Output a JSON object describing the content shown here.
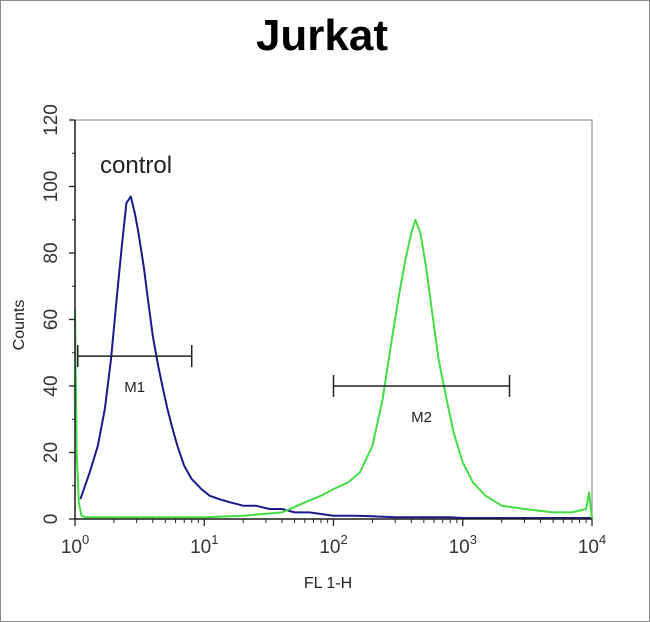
{
  "chart_data": {
    "type": "line",
    "title": "Jurkat",
    "xlabel": "FL 1-H",
    "ylabel": "Counts",
    "xscale": "log",
    "xlim": [
      1,
      10000
    ],
    "ylim": [
      0,
      120
    ],
    "x_ticks": [
      {
        "base": "10",
        "exp": "0",
        "value": 1
      },
      {
        "base": "10",
        "exp": "1",
        "value": 10
      },
      {
        "base": "10",
        "exp": "2",
        "value": 100
      },
      {
        "base": "10",
        "exp": "3",
        "value": 1000
      },
      {
        "base": "10",
        "exp": "4",
        "value": 10000
      }
    ],
    "y_ticks": [
      "0",
      "20",
      "40",
      "60",
      "80",
      "100",
      "120"
    ],
    "annotation": "control",
    "series": [
      {
        "color": "#1a1a8c",
        "x": [
          1.1,
          1.3,
          1.5,
          1.7,
          1.9,
          2.1,
          2.3,
          2.5,
          2.7,
          2.9,
          3.1,
          3.4,
          3.7,
          4.0,
          4.4,
          4.8,
          5.2,
          5.7,
          6.2,
          7.0,
          8.0,
          9.5,
          11,
          13,
          16,
          20,
          25,
          32,
          40,
          50,
          65,
          80,
          100,
          150,
          200,
          300,
          500,
          800,
          1000,
          2000,
          3000,
          5000,
          10000
        ],
        "y": [
          6,
          14,
          22,
          33,
          48,
          66,
          82,
          95,
          97,
          92,
          86,
          76,
          65,
          55,
          46,
          39,
          33,
          27,
          22,
          16,
          12,
          9,
          7,
          6,
          5,
          4,
          4,
          3,
          3,
          2,
          2,
          1.5,
          1,
          1,
          0.8,
          0.5,
          0.5,
          0.5,
          0.3,
          0.3,
          0.3,
          0.3,
          0.3
        ]
      },
      {
        "color": "#44dd44",
        "x": [
          1.0,
          1.03,
          1.07,
          1.12,
          1.2,
          1.5,
          2,
          3,
          5,
          10,
          20,
          40,
          60,
          80,
          100,
          130,
          160,
          200,
          240,
          280,
          320,
          360,
          400,
          430,
          470,
          520,
          580,
          650,
          750,
          850,
          1000,
          1200,
          1500,
          2000,
          3000,
          5000,
          7000,
          9000,
          9500,
          10000
        ],
        "y": [
          63,
          20,
          5,
          1,
          0.5,
          0.5,
          0.5,
          0.5,
          0.5,
          0.5,
          1,
          2,
          5,
          7,
          9,
          11,
          14,
          22,
          36,
          53,
          67,
          78,
          86,
          90,
          86,
          76,
          62,
          48,
          36,
          26,
          17,
          11,
          7,
          4,
          3,
          2,
          2,
          3,
          8,
          0
        ]
      }
    ],
    "markers": [
      {
        "label": "M1",
        "x_start": 1.05,
        "x_end": 8.0,
        "y": 49
      },
      {
        "label": "M2",
        "x_start": 100,
        "x_end": 2300,
        "y": 40
      }
    ]
  }
}
